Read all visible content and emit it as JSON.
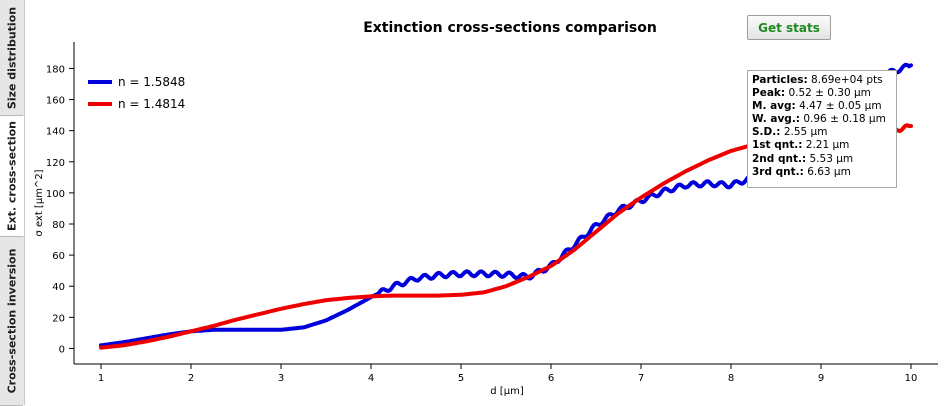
{
  "tabs": [
    {
      "label": "Size distribution",
      "active": false
    },
    {
      "label": "Ext. cross-section",
      "active": true
    },
    {
      "label": "Cross-section inversion",
      "active": false
    }
  ],
  "buttons": {
    "get_stats": "Get stats"
  },
  "stats": [
    {
      "label": "Particles:",
      "value": "8.69e+04 pts"
    },
    {
      "label": "Peak:",
      "value": "0.52 ± 0.30 µm"
    },
    {
      "label": "M. avg:",
      "value": "4.47 ± 0.05 µm"
    },
    {
      "label": "W. avg.:",
      "value": "0.96 ± 0.18 µm"
    },
    {
      "label": "S.D.:",
      "value": "2.55 µm"
    },
    {
      "label": "1st qnt.:",
      "value": "2.21 µm"
    },
    {
      "label": "2nd qnt.:",
      "value": "5.53 µm"
    },
    {
      "label": "3rd qnt.:",
      "value": "6.63 µm"
    }
  ],
  "chart_data": {
    "type": "line",
    "title": "Extinction cross-sections comparison",
    "xlabel": "d [µm]",
    "ylabel": "σ ext [µm^2]",
    "xlim": [
      0.7,
      10.3
    ],
    "ylim": [
      -10,
      197
    ],
    "xticks": [
      1,
      2,
      3,
      4,
      5,
      6,
      7,
      8,
      9,
      10
    ],
    "yticks": [
      0,
      20,
      40,
      60,
      80,
      100,
      120,
      140,
      160,
      180
    ],
    "legend_position": "top-left",
    "series": [
      {
        "name": "n = 1.5848",
        "color": "#0000dd",
        "x": [
          1,
          1.25,
          1.5,
          1.75,
          2,
          2.25,
          2.5,
          2.75,
          3,
          3.25,
          3.5,
          3.75,
          4,
          4.25,
          4.5,
          4.75,
          5,
          5.25,
          5.5,
          5.75,
          6,
          6.25,
          6.5,
          6.75,
          7,
          7.25,
          7.5,
          7.75,
          8,
          8.25,
          8.5,
          8.75,
          9,
          9.25,
          9.5,
          9.75,
          10
        ],
        "y": [
          2,
          4,
          6.5,
          9,
          11,
          12,
          12,
          12,
          12,
          13.5,
          18,
          25,
          33,
          40,
          45,
          47,
          48,
          48,
          47.5,
          46,
          53,
          66,
          79,
          89,
          95,
          101,
          105,
          106,
          105,
          110,
          124,
          135,
          147,
          160,
          170,
          177,
          182
        ]
      },
      {
        "name": "n = 1.4814",
        "color": "#ee0000",
        "x": [
          1,
          1.25,
          1.5,
          1.75,
          2,
          2.25,
          2.5,
          2.75,
          3,
          3.25,
          3.5,
          3.75,
          4,
          4.25,
          4.5,
          4.75,
          5,
          5.25,
          5.5,
          5.75,
          6,
          6.25,
          6.5,
          6.75,
          7,
          7.25,
          7.5,
          7.75,
          8,
          8.25,
          8.5,
          8.75,
          9,
          9.25,
          9.5,
          9.75,
          10
        ],
        "y": [
          0.5,
          2,
          4.5,
          7.5,
          11,
          14.5,
          18.5,
          22,
          25.5,
          28.5,
          31,
          32.5,
          33.5,
          34,
          34,
          34,
          34.5,
          36,
          40,
          46,
          53,
          63,
          75,
          87,
          97,
          106,
          114,
          121,
          127,
          131,
          134,
          136,
          137,
          138,
          138,
          139,
          143
        ]
      }
    ]
  }
}
